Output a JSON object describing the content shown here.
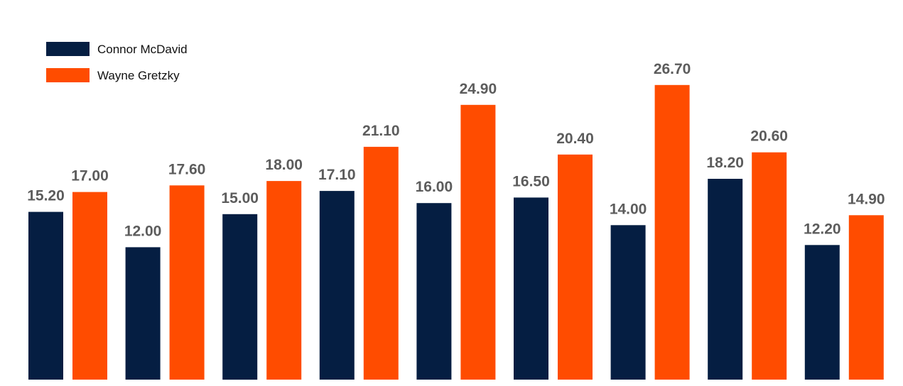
{
  "chart_data": {
    "type": "bar",
    "categories": [
      "",
      "",
      "",
      "",
      "",
      "",
      "",
      "",
      ""
    ],
    "series": [
      {
        "name": "Connor McDavid",
        "color": "#051e42",
        "values": [
          15.2,
          12.0,
          15.0,
          17.1,
          16.0,
          16.5,
          14.0,
          18.2,
          12.2
        ]
      },
      {
        "name": "Wayne Gretzky",
        "color": "#ff4c00",
        "values": [
          17.0,
          17.6,
          18.0,
          21.1,
          24.9,
          20.4,
          26.7,
          20.6,
          14.9
        ]
      }
    ],
    "value_labels": [
      [
        "15.20",
        "12.00",
        "15.00",
        "17.10",
        "16.00",
        "16.50",
        "14.00",
        "18.20",
        "12.20"
      ],
      [
        "17.00",
        "17.60",
        "18.00",
        "21.10",
        "24.90",
        "20.40",
        "26.70",
        "20.60",
        "14.90"
      ]
    ],
    "legend_position": "top-left",
    "grid": false,
    "ylim": [
      0,
      30
    ]
  }
}
